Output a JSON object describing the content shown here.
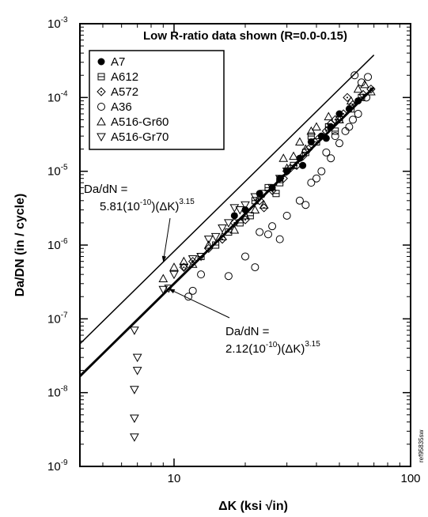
{
  "chart_data": {
    "type": "scatter",
    "title": "Low R-ratio data shown (R=0.0-0.15)",
    "xlabel": "ΔK (ksi √in)",
    "ylabel": "Da/DN (in / cycle)",
    "x_scale": "log",
    "y_scale": "log",
    "xlim": [
      4,
      100
    ],
    "ylim": [
      1e-09,
      0.001
    ],
    "x_tick_labels": [
      {
        "value": 10,
        "label": "10"
      },
      {
        "value": 100,
        "label": "100"
      }
    ],
    "y_tick_labels": [
      {
        "value": 0.001,
        "base": "10",
        "exp": "-3"
      },
      {
        "value": 0.0001,
        "base": "10",
        "exp": "-4"
      },
      {
        "value": 1e-05,
        "base": "10",
        "exp": "-5"
      },
      {
        "value": 1e-06,
        "base": "10",
        "exp": "-6"
      },
      {
        "value": 1e-07,
        "base": "10",
        "exp": "-7"
      },
      {
        "value": 1e-08,
        "base": "10",
        "exp": "-8"
      },
      {
        "value": 1e-09,
        "base": "10",
        "exp": "-9"
      }
    ],
    "legend_position": "top-left",
    "series": [
      {
        "name": "A7",
        "marker": "filled-circle",
        "points": [
          [
            18,
            2.5e-06
          ],
          [
            20,
            3e-06
          ],
          [
            23,
            5e-06
          ],
          [
            26,
            6e-06
          ],
          [
            30,
            1e-05
          ],
          [
            34,
            1.5e-05
          ],
          [
            38,
            2.5e-05
          ],
          [
            42,
            3e-05
          ],
          [
            46,
            4e-05
          ],
          [
            50,
            6e-05
          ],
          [
            55,
            7e-05
          ],
          [
            60,
            9e-05
          ],
          [
            35,
            1.2e-05
          ],
          [
            28,
            8e-06
          ],
          [
            44,
            2.8e-05
          ]
        ]
      },
      {
        "name": "A612",
        "marker": "square-dot",
        "points": [
          [
            13,
            7e-07
          ],
          [
            15,
            1e-06
          ],
          [
            17,
            1.5e-06
          ],
          [
            19,
            2e-06
          ],
          [
            22,
            4e-06
          ],
          [
            25,
            6e-06
          ],
          [
            28,
            7e-06
          ],
          [
            32,
            1.2e-05
          ],
          [
            36,
            1.8e-05
          ],
          [
            40,
            2.5e-05
          ],
          [
            45,
            4e-05
          ],
          [
            50,
            5e-05
          ],
          [
            56,
            7e-05
          ],
          [
            62,
            0.0001
          ],
          [
            21,
            2.5e-06
          ],
          [
            27,
            5e-06
          ],
          [
            38,
            3e-05
          ],
          [
            48,
            3.5e-05
          ]
        ]
      },
      {
        "name": "A572",
        "marker": "diamond-dot",
        "points": [
          [
            12,
            6e-07
          ],
          [
            14,
            9e-07
          ],
          [
            16,
            1.2e-06
          ],
          [
            18,
            2e-06
          ],
          [
            20,
            2.2e-06
          ],
          [
            23,
            4e-06
          ],
          [
            26,
            5.5e-06
          ],
          [
            29,
            8e-06
          ],
          [
            31,
            1.1e-05
          ],
          [
            33,
            1.2e-05
          ],
          [
            37,
            2e-05
          ],
          [
            41,
            2.8e-05
          ],
          [
            44,
            3.5e-05
          ],
          [
            48,
            5e-05
          ],
          [
            52,
            6e-05
          ],
          [
            57,
            8e-05
          ],
          [
            63,
            0.00011
          ],
          [
            68,
            0.00013
          ],
          [
            11,
            5e-07
          ],
          [
            24,
            3.2e-06
          ],
          [
            35,
            1.6e-05
          ],
          [
            46,
            4.4e-05
          ],
          [
            54,
            0.0001
          ]
        ]
      },
      {
        "name": "A36",
        "marker": "open-circle",
        "points": [
          [
            11.5,
            2e-07
          ],
          [
            12,
            2.4e-07
          ],
          [
            13,
            4e-07
          ],
          [
            17,
            3.8e-07
          ],
          [
            20,
            7e-07
          ],
          [
            22,
            5e-07
          ],
          [
            25,
            1.4e-06
          ],
          [
            28,
            1.2e-06
          ],
          [
            30,
            2.5e-06
          ],
          [
            34,
            4e-06
          ],
          [
            38,
            7e-06
          ],
          [
            42,
            1e-05
          ],
          [
            46,
            1.5e-05
          ],
          [
            50,
            2.4e-05
          ],
          [
            55,
            4e-05
          ],
          [
            60,
            6e-05
          ],
          [
            65,
            0.0001
          ],
          [
            58,
            0.0002
          ],
          [
            62,
            0.00016
          ],
          [
            66,
            0.00019
          ],
          [
            36,
            3.5e-06
          ],
          [
            40,
            8e-06
          ],
          [
            44,
            1.8e-05
          ],
          [
            48,
            3e-05
          ],
          [
            53,
            3.5e-05
          ],
          [
            57,
            5e-05
          ],
          [
            23,
            1.5e-06
          ],
          [
            26,
            1.8e-06
          ]
        ]
      },
      {
        "name": "A516-Gr60",
        "marker": "triangle-up",
        "points": [
          [
            9,
            3.5e-07
          ],
          [
            10,
            5e-07
          ],
          [
            11,
            6e-07
          ],
          [
            12,
            5.5e-07
          ],
          [
            14,
            1e-06
          ],
          [
            16,
            1.3e-06
          ],
          [
            18,
            1.6e-06
          ],
          [
            20,
            2.5e-06
          ],
          [
            22,
            3e-06
          ],
          [
            24,
            3.5e-06
          ],
          [
            30,
            1.1e-05
          ],
          [
            32,
            1.6e-05
          ],
          [
            36,
            2e-05
          ],
          [
            40,
            4e-05
          ],
          [
            45,
            5.5e-05
          ],
          [
            50,
            5e-05
          ],
          [
            56,
            9e-05
          ],
          [
            60,
            0.00013
          ],
          [
            64,
            0.00015
          ],
          [
            68,
            0.00012
          ],
          [
            29,
            1.5e-05
          ],
          [
            34,
            2.5e-05
          ],
          [
            38,
            3.5e-05
          ]
        ]
      },
      {
        "name": "A516-Gr70",
        "marker": "triangle-down",
        "points": [
          [
            6.8,
            7e-08
          ],
          [
            7,
            3e-08
          ],
          [
            7,
            2e-08
          ],
          [
            6.8,
            1.1e-08
          ],
          [
            6.8,
            4.5e-09
          ],
          [
            6.8,
            2.5e-09
          ],
          [
            9,
            2.5e-07
          ],
          [
            9.5,
            2.6e-07
          ],
          [
            10,
            4e-07
          ],
          [
            11,
            5e-07
          ],
          [
            12,
            6.5e-07
          ],
          [
            13,
            7e-07
          ],
          [
            14,
            1.2e-06
          ],
          [
            15,
            1.3e-06
          ],
          [
            16,
            1.7e-06
          ],
          [
            17,
            2e-06
          ],
          [
            18,
            3.2e-06
          ],
          [
            19,
            3e-06
          ],
          [
            20,
            3.5e-06
          ],
          [
            22,
            4.5e-06
          ],
          [
            24,
            5e-06
          ],
          [
            26,
            6e-06
          ],
          [
            28,
            8e-06
          ],
          [
            30,
            1e-05
          ]
        ]
      }
    ],
    "lines": [
      {
        "coeff": 5.81e-10,
        "exponent": 3.15,
        "x_range": [
          4,
          70
        ],
        "weight": "thin"
      },
      {
        "coeff": 2.12e-10,
        "exponent": 3.15,
        "x_range": [
          4,
          70
        ],
        "weight": "bold"
      }
    ],
    "annotations": [
      {
        "id": "upper",
        "line1": "Da/dN =",
        "prefix": "5.81(10",
        "exp1": "-10",
        "middle": ")(ΔK)",
        "exp2": "3.15",
        "arrow_to_x": 9
      },
      {
        "id": "lower",
        "line1": "Da/dN =",
        "prefix": "2.12(10",
        "exp1": "-10",
        "middle": ")(ΔK)",
        "exp2": "3.15",
        "arrow_to_x": 9.5
      }
    ],
    "side_label": "ref95835sw"
  }
}
